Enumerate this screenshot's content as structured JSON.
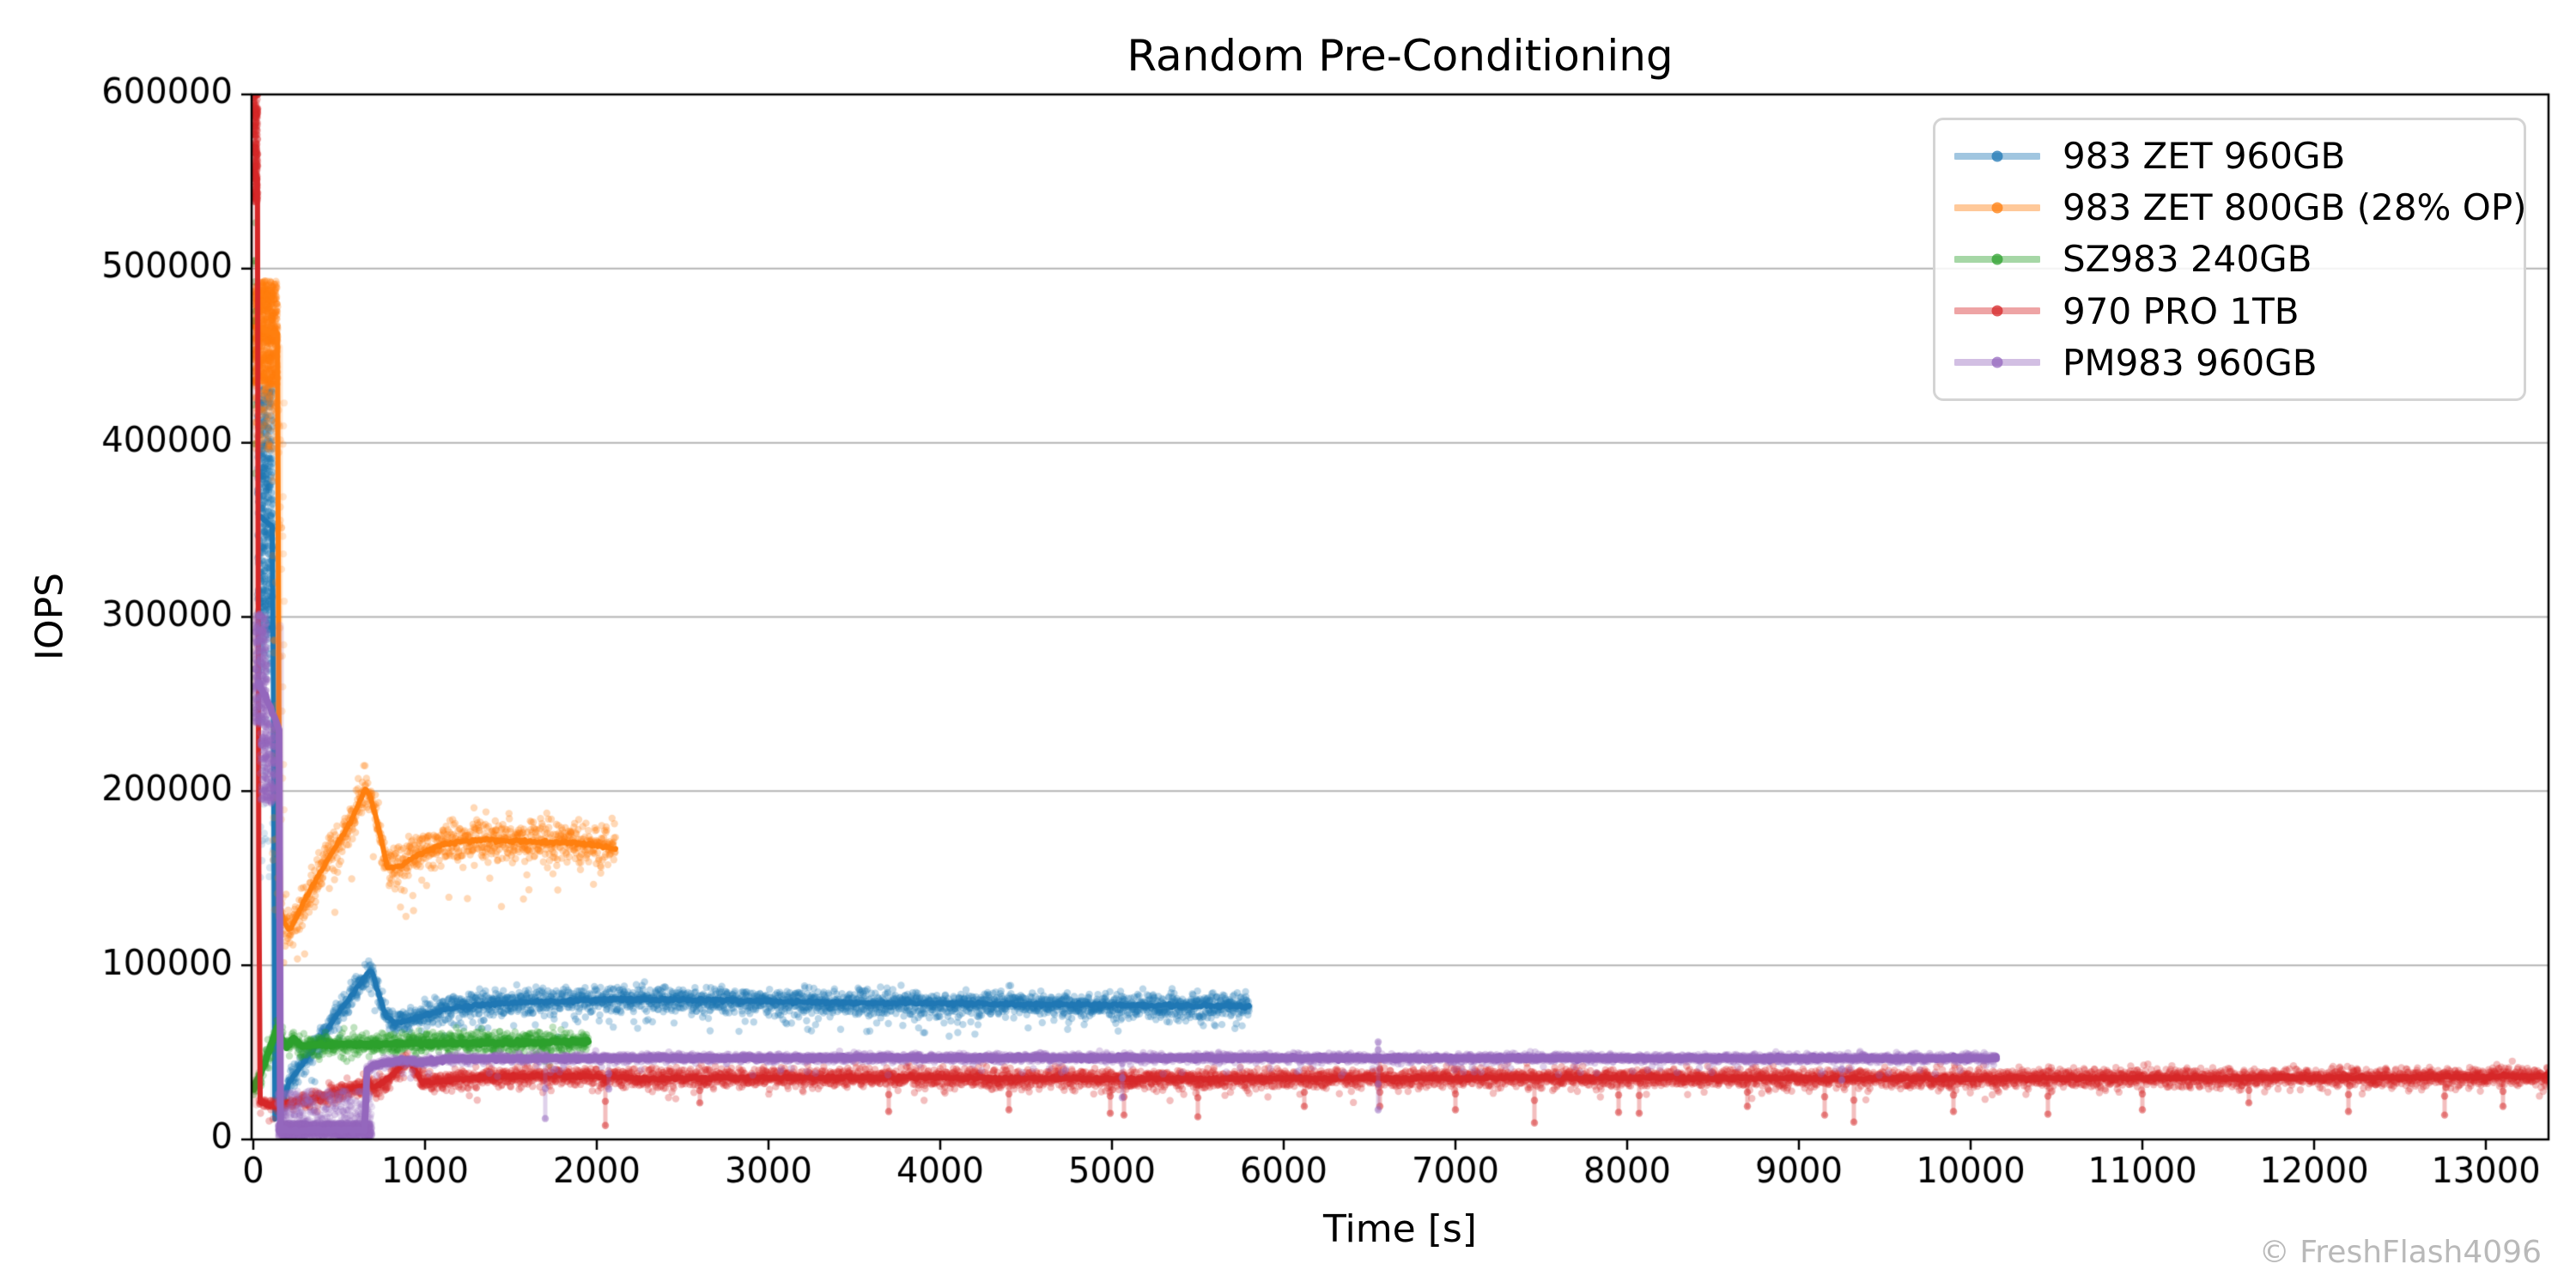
{
  "figure": {
    "title": "Random Pre-Conditioning",
    "xlabel": "Time [s]",
    "ylabel": "IOPS",
    "watermark": "© FreshFlash4096"
  },
  "chart_data": {
    "type": "scatter",
    "title": "Random Pre-Conditioning",
    "xlabel": "Time [s]",
    "ylabel": "IOPS",
    "xlim": [
      -10,
      13375
    ],
    "ylim": [
      0,
      600000
    ],
    "xticks": [
      0,
      1000,
      2000,
      3000,
      4000,
      5000,
      6000,
      7000,
      8000,
      9000,
      10000,
      11000,
      12000,
      13000
    ],
    "yticks": [
      0,
      100000,
      200000,
      300000,
      400000,
      500000,
      600000
    ],
    "grid": "horizontal-only",
    "grid_color": "#b4b4b4",
    "legend_position": "upper-right",
    "series": [
      {
        "name": "983 ZET 960GB",
        "color": "#1f77b4",
        "seed": 11,
        "line_width": 6,
        "t_end": 5800,
        "bursts": [
          {
            "t": [
              25,
              115
            ],
            "y": [
              292000,
              432000
            ],
            "n": 500,
            "alpha": 0.3
          },
          {
            "t": [
              30,
              110
            ],
            "y": [
              268000,
              292000
            ],
            "n": 45,
            "alpha": 0.22
          },
          {
            "t": [
              35,
              120
            ],
            "y": [
              150000,
              268000
            ],
            "n": 35,
            "alpha": 0.18
          }
        ],
        "smears": [
          {
            "t": 122,
            "y": [
              12000,
              430000
            ]
          }
        ],
        "mean_profile": [
          [
            30,
            358000
          ],
          [
            115,
            352000
          ],
          [
            125,
            12000
          ],
          [
            165,
            20000
          ],
          [
            210,
            33000
          ],
          [
            320,
            48000
          ],
          [
            480,
            70000
          ],
          [
            660,
            95000
          ],
          [
            690,
            97000
          ],
          [
            705,
            92000
          ],
          [
            770,
            71000
          ],
          [
            830,
            66500
          ],
          [
            950,
            70000
          ],
          [
            1150,
            75500
          ],
          [
            1500,
            78500
          ],
          [
            2100,
            80500
          ],
          [
            2700,
            80000
          ],
          [
            3500,
            78500
          ],
          [
            4600,
            77500
          ],
          [
            5800,
            76500
          ]
        ],
        "cloud": {
          "t": [
            160,
            5800
          ],
          "noise": 3600,
          "out_p": 0.04,
          "out": [
            -8000,
            -16000
          ]
        }
      },
      {
        "name": "983 ZET 800GB (28% OP)",
        "color": "#ff7f0e",
        "seed": 22,
        "line_width": 6,
        "t_end": 2110,
        "bursts": [
          {
            "t": [
              4,
              142
            ],
            "y": [
              433000,
              493000
            ],
            "n": 700,
            "alpha": 0.3
          },
          {
            "t": [
              8,
              140
            ],
            "y": [
              396000,
              433000
            ],
            "n": 120,
            "alpha": 0.2
          },
          {
            "t": [
              110,
              180
            ],
            "y": [
              130000,
              430000
            ],
            "n": 60,
            "alpha": 0.2
          }
        ],
        "smears": [
          {
            "t": 150,
            "y": [
              128000,
              455000
            ]
          }
        ],
        "mean_profile": [
          [
            5,
            467000
          ],
          [
            143,
            462000
          ],
          [
            152,
            135000
          ],
          [
            175,
            126000
          ],
          [
            215,
            120000
          ],
          [
            300,
            138000
          ],
          [
            430,
            160000
          ],
          [
            560,
            181000
          ],
          [
            655,
            202000
          ],
          [
            680,
            197000
          ],
          [
            720,
            183000
          ],
          [
            780,
            156000
          ],
          [
            850,
            156500
          ],
          [
            950,
            163000
          ],
          [
            1100,
            169500
          ],
          [
            1300,
            172000
          ],
          [
            1600,
            171000
          ],
          [
            1900,
            170000
          ],
          [
            2110,
            167000
          ]
        ],
        "cloud": {
          "t": [
            155,
            2110
          ],
          "noise": 6000,
          "out_p": 0.03,
          "out": [
            -15000,
            -30000
          ]
        }
      },
      {
        "name": "SZ983 240GB",
        "color": "#2ca02c",
        "seed": 33,
        "line_width": 8,
        "t_end": 1950,
        "bursts": [
          {
            "t": [
              0,
              16
            ],
            "y": [
              380000,
              532000
            ],
            "n": 10,
            "alpha": 0.35
          }
        ],
        "smears": [],
        "mean_profile": [
          [
            2,
            29000
          ],
          [
            60,
            42000
          ],
          [
            138,
            64500
          ],
          [
            165,
            58000
          ],
          [
            190,
            52500
          ],
          [
            235,
            58500
          ],
          [
            275,
            53500
          ],
          [
            330,
            54000
          ],
          [
            500,
            54500
          ],
          [
            900,
            55000
          ],
          [
            1500,
            55500
          ],
          [
            1950,
            56200
          ]
        ],
        "cloud": {
          "t": [
            0,
            1950
          ],
          "noise": 3200,
          "out_p": 0.02,
          "out": [
            -6000,
            -10000
          ]
        }
      },
      {
        "name": "970 PRO 1TB",
        "color": "#d62728",
        "seed": 44,
        "line_width": 6,
        "t_end": 13420,
        "bursts": [
          {
            "t": [
              0,
              26
            ],
            "y": [
              538000,
              601000
            ],
            "n": 220,
            "alpha": 0.32
          }
        ],
        "smears": [
          {
            "t": 18,
            "y": [
              20000,
              560000
            ]
          }
        ],
        "mean_profile": [
          [
            0,
            556000
          ],
          [
            26,
            552000
          ],
          [
            34,
            21500
          ],
          [
            90,
            19500
          ],
          [
            150,
            20000
          ],
          [
            300,
            22500
          ],
          [
            480,
            26500
          ],
          [
            640,
            30500
          ],
          [
            670,
            32500
          ],
          [
            700,
            29500
          ],
          [
            760,
            33000
          ],
          [
            900,
            45500
          ],
          [
            940,
            40000
          ],
          [
            980,
            33000
          ],
          [
            1100,
            33500
          ],
          [
            1400,
            36000
          ],
          [
            1800,
            36500
          ],
          [
            2300,
            35000
          ],
          [
            3000,
            35500
          ],
          [
            4000,
            35500
          ],
          [
            5000,
            34800
          ],
          [
            6500,
            35200
          ],
          [
            8000,
            35500
          ],
          [
            9500,
            35000
          ],
          [
            11000,
            35300
          ],
          [
            12500,
            35500
          ],
          [
            13380,
            36500
          ],
          [
            13420,
            44000
          ]
        ],
        "cloud": {
          "t": [
            34,
            13420
          ],
          "noise": 2600,
          "out_p": 0.02,
          "out": [
            -5000,
            -9000
          ],
          "tight_until": 280,
          "tight_noise": 1300
        },
        "spikes": [
          [
            2050,
            8000
          ],
          [
            2600,
            21000
          ],
          [
            3700,
            16000
          ],
          [
            4400,
            17000
          ],
          [
            4990,
            15000
          ],
          [
            5070,
            14000
          ],
          [
            5500,
            13000
          ],
          [
            6120,
            19000
          ],
          [
            6560,
            19000
          ],
          [
            7000,
            17000
          ],
          [
            7460,
            9500
          ],
          [
            7950,
            15500
          ],
          [
            8070,
            15000
          ],
          [
            8700,
            19000
          ],
          [
            9150,
            14000
          ],
          [
            9320,
            10000
          ],
          [
            9900,
            16000
          ],
          [
            10450,
            14500
          ],
          [
            11000,
            17000
          ],
          [
            11620,
            21000
          ],
          [
            12200,
            16000
          ],
          [
            12760,
            14000
          ],
          [
            13100,
            19000
          ]
        ],
        "spikes_up": [
          [
            6560,
            46000
          ]
        ]
      },
      {
        "name": "PM983 960GB",
        "color": "#9467bd",
        "seed": 55,
        "line_width": 8,
        "t_end": 10150,
        "bursts": [
          {
            "t": [
              5,
              80
            ],
            "y": [
              238000,
              302000
            ],
            "n": 260,
            "alpha": 0.3
          },
          {
            "t": [
              40,
              130
            ],
            "y": [
              193000,
              240000
            ],
            "n": 200,
            "alpha": 0.3
          },
          {
            "t": [
              140,
              690
            ],
            "y": [
              9500,
              28000
            ],
            "n": 300,
            "alpha": 0.2
          },
          {
            "t": [
              145,
              690
            ],
            "y": [
              1500,
              9500
            ],
            "n": 900,
            "alpha": 0.3
          }
        ],
        "smears": [
          {
            "t": 156,
            "y": [
              5000,
              295000
            ]
          }
        ],
        "mean_profile": [
          [
            30,
            262000
          ],
          [
            100,
            248000
          ],
          [
            150,
            235000
          ],
          [
            158,
            5200
          ],
          [
            300,
            5000
          ],
          [
            650,
            5400
          ],
          [
            660,
            40500
          ],
          [
            730,
            43500
          ],
          [
            860,
            45500
          ],
          [
            980,
            44200
          ],
          [
            1150,
            46300
          ],
          [
            2500,
            46800
          ],
          [
            5000,
            46800
          ],
          [
            8000,
            46700
          ],
          [
            10150,
            46500
          ]
        ],
        "cloud": {
          "t": [
            660,
            10150
          ],
          "noise": 1100,
          "out_p": 0.015,
          "out": [
            -4000,
            -9000
          ]
        },
        "spikes": [
          [
            1700,
            12000
          ],
          [
            2070,
            29000
          ],
          [
            5060,
            24000
          ],
          [
            6550,
            17000
          ],
          [
            9250,
            34000
          ]
        ],
        "spikes_up": [
          [
            6550,
            56000
          ]
        ]
      }
    ]
  }
}
